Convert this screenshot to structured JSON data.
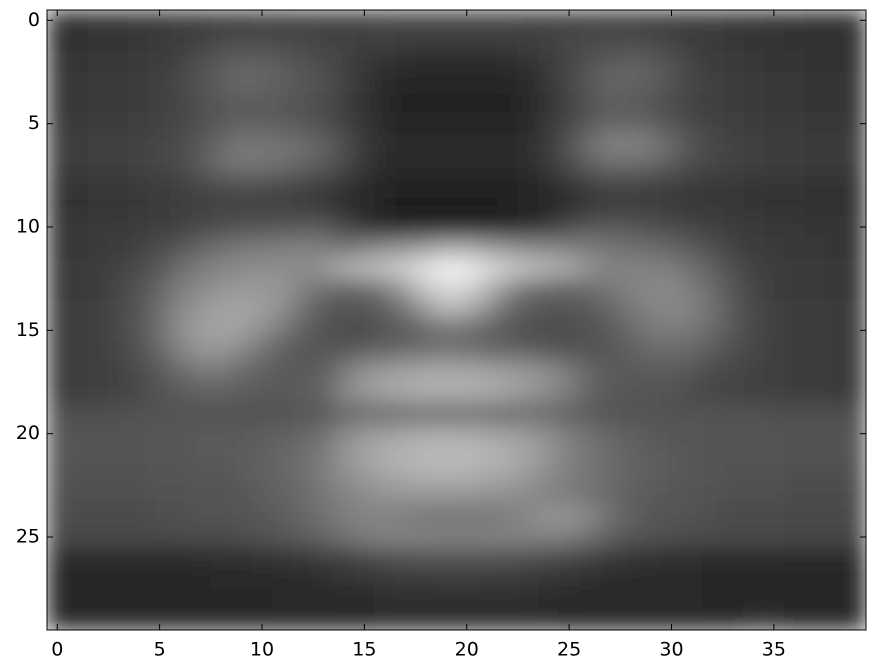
{
  "chart_data": {
    "type": "heatmap",
    "colormap": "gray",
    "xlim": [
      -0.5,
      39.5
    ],
    "ylim": [
      29.5,
      -0.5
    ],
    "xticks": [
      0,
      5,
      10,
      15,
      20,
      25,
      30,
      35
    ],
    "yticks": [
      0,
      5,
      10,
      15,
      20,
      25
    ],
    "z": [
      [
        24,
        24,
        25,
        25,
        26,
        26,
        27,
        27,
        28,
        28,
        29,
        29,
        30,
        30,
        30,
        30,
        31,
        31,
        31,
        31,
        31,
        31,
        31,
        30,
        30,
        30,
        30,
        29,
        29,
        28,
        28,
        27,
        27,
        26,
        26,
        25,
        25,
        24,
        24,
        24
      ],
      [
        24,
        24,
        25,
        25,
        26,
        27,
        28,
        30,
        32,
        33,
        33,
        32,
        31,
        30,
        30,
        29,
        29,
        28,
        28,
        28,
        28,
        28,
        28,
        29,
        30,
        31,
        32,
        33,
        33,
        32,
        30,
        28,
        27,
        26,
        25,
        25,
        24,
        24,
        24,
        24
      ],
      [
        25,
        25,
        26,
        26,
        27,
        28,
        30,
        34,
        38,
        40,
        40,
        38,
        35,
        33,
        30,
        26,
        24,
        23,
        22,
        22,
        22,
        22,
        23,
        24,
        27,
        31,
        35,
        38,
        40,
        38,
        35,
        30,
        28,
        27,
        26,
        25,
        25,
        24,
        24,
        24
      ],
      [
        26,
        26,
        27,
        27,
        28,
        29,
        32,
        36,
        40,
        43,
        42,
        40,
        37,
        35,
        30,
        25,
        22,
        20,
        20,
        20,
        20,
        20,
        20,
        22,
        26,
        32,
        38,
        42,
        42,
        40,
        36,
        31,
        29,
        28,
        27,
        26,
        26,
        25,
        25,
        25
      ],
      [
        26,
        26,
        27,
        27,
        28,
        29,
        31,
        34,
        37,
        38,
        38,
        37,
        35,
        33,
        29,
        24,
        21,
        19,
        19,
        19,
        19,
        19,
        19,
        21,
        25,
        30,
        35,
        38,
        38,
        36,
        33,
        30,
        29,
        28,
        27,
        26,
        26,
        25,
        25,
        25
      ],
      [
        27,
        27,
        28,
        28,
        29,
        30,
        31,
        34,
        38,
        40,
        40,
        39,
        37,
        34,
        30,
        25,
        22,
        20,
        20,
        20,
        20,
        20,
        20,
        22,
        26,
        32,
        38,
        42,
        42,
        40,
        36,
        32,
        30,
        29,
        28,
        27,
        27,
        26,
        26,
        26
      ],
      [
        28,
        28,
        29,
        29,
        30,
        31,
        33,
        38,
        44,
        48,
        48,
        47,
        45,
        41,
        34,
        27,
        23,
        21,
        21,
        21,
        21,
        21,
        21,
        23,
        28,
        36,
        46,
        52,
        53,
        50,
        44,
        36,
        32,
        30,
        29,
        28,
        28,
        27,
        27,
        27
      ],
      [
        28,
        28,
        29,
        29,
        30,
        31,
        33,
        38,
        45,
        48,
        47,
        45,
        42,
        38,
        32,
        26,
        22,
        21,
        21,
        21,
        21,
        21,
        21,
        23,
        27,
        33,
        40,
        44,
        44,
        42,
        38,
        33,
        31,
        30,
        29,
        28,
        28,
        27,
        27,
        27
      ],
      [
        25,
        25,
        26,
        26,
        27,
        28,
        29,
        31,
        33,
        34,
        33,
        32,
        30,
        28,
        25,
        22,
        20,
        19,
        19,
        19,
        19,
        19,
        19,
        20,
        22,
        25,
        28,
        30,
        30,
        29,
        28,
        27,
        26,
        26,
        25,
        25,
        25,
        24,
        24,
        24
      ],
      [
        24,
        24,
        25,
        25,
        26,
        27,
        28,
        29,
        30,
        30,
        30,
        29,
        28,
        26,
        23,
        20,
        18,
        17,
        17,
        17,
        17,
        17,
        17,
        18,
        20,
        23,
        26,
        28,
        28,
        28,
        27,
        26,
        26,
        25,
        25,
        24,
        24,
        24,
        24,
        24
      ],
      [
        26,
        26,
        27,
        27,
        28,
        29,
        30,
        32,
        34,
        35,
        36,
        37,
        38,
        38,
        32,
        25,
        21,
        20,
        20,
        20,
        20,
        20,
        21,
        23,
        27,
        33,
        37,
        38,
        37,
        35,
        33,
        31,
        29,
        28,
        27,
        26,
        26,
        25,
        25,
        25
      ],
      [
        26,
        26,
        27,
        28,
        30,
        33,
        37,
        42,
        46,
        48,
        50,
        51,
        52,
        50,
        48,
        52,
        56,
        58,
        62,
        66,
        66,
        62,
        58,
        55,
        54,
        52,
        50,
        48,
        46,
        44,
        42,
        38,
        34,
        30,
        28,
        27,
        26,
        26,
        25,
        25
      ],
      [
        27,
        27,
        28,
        30,
        33,
        38,
        45,
        50,
        53,
        55,
        56,
        56,
        55,
        60,
        68,
        72,
        75,
        80,
        86,
        92,
        90,
        84,
        78,
        74,
        70,
        66,
        58,
        52,
        52,
        52,
        50,
        46,
        40,
        34,
        30,
        28,
        27,
        27,
        26,
        26
      ],
      [
        27,
        27,
        28,
        31,
        35,
        42,
        50,
        55,
        58,
        60,
        60,
        58,
        52,
        45,
        42,
        44,
        50,
        62,
        75,
        82,
        80,
        70,
        56,
        46,
        42,
        42,
        44,
        48,
        52,
        54,
        54,
        50,
        44,
        36,
        31,
        28,
        27,
        27,
        26,
        26
      ],
      [
        28,
        28,
        29,
        32,
        37,
        45,
        54,
        60,
        63,
        64,
        62,
        56,
        46,
        38,
        35,
        36,
        40,
        48,
        60,
        70,
        66,
        56,
        44,
        38,
        36,
        36,
        38,
        42,
        48,
        52,
        54,
        52,
        46,
        38,
        32,
        29,
        28,
        28,
        27,
        27
      ],
      [
        28,
        28,
        29,
        32,
        37,
        46,
        56,
        62,
        64,
        62,
        56,
        48,
        40,
        35,
        33,
        33,
        35,
        38,
        42,
        45,
        44,
        40,
        36,
        34,
        33,
        33,
        35,
        38,
        44,
        48,
        50,
        48,
        44,
        37,
        32,
        29,
        28,
        28,
        27,
        27
      ],
      [
        28,
        28,
        29,
        31,
        35,
        42,
        52,
        58,
        58,
        54,
        46,
        40,
        37,
        36,
        38,
        40,
        42,
        44,
        46,
        47,
        46,
        44,
        42,
        40,
        38,
        37,
        36,
        37,
        40,
        43,
        44,
        42,
        38,
        34,
        31,
        29,
        28,
        28,
        27,
        27
      ],
      [
        28,
        28,
        29,
        30,
        33,
        38,
        44,
        48,
        48,
        44,
        40,
        38,
        38,
        40,
        50,
        58,
        62,
        64,
        66,
        66,
        66,
        64,
        62,
        60,
        56,
        50,
        42,
        38,
        38,
        38,
        38,
        36,
        33,
        31,
        30,
        29,
        28,
        28,
        27,
        27
      ],
      [
        28,
        28,
        29,
        30,
        32,
        35,
        38,
        40,
        40,
        39,
        38,
        38,
        39,
        42,
        54,
        60,
        64,
        66,
        68,
        68,
        68,
        66,
        64,
        60,
        56,
        50,
        42,
        38,
        37,
        36,
        35,
        33,
        31,
        30,
        29,
        29,
        28,
        28,
        27,
        27
      ],
      [
        34,
        34,
        34,
        34,
        35,
        35,
        35,
        35,
        35,
        35,
        35,
        35,
        36,
        38,
        42,
        44,
        44,
        45,
        45,
        45,
        45,
        45,
        44,
        44,
        42,
        40,
        38,
        36,
        35,
        35,
        35,
        35,
        35,
        35,
        35,
        34,
        34,
        34,
        34,
        34
      ],
      [
        36,
        36,
        36,
        36,
        36,
        37,
        37,
        38,
        38,
        38,
        39,
        40,
        42,
        46,
        54,
        60,
        62,
        64,
        66,
        66,
        66,
        64,
        62,
        60,
        56,
        50,
        46,
        42,
        40,
        38,
        37,
        37,
        36,
        36,
        36,
        36,
        35,
        35,
        35,
        35
      ],
      [
        36,
        36,
        36,
        36,
        36,
        37,
        37,
        38,
        38,
        39,
        40,
        42,
        45,
        50,
        58,
        64,
        68,
        70,
        72,
        72,
        72,
        70,
        68,
        64,
        58,
        52,
        48,
        44,
        41,
        39,
        38,
        37,
        36,
        36,
        36,
        36,
        35,
        35,
        35,
        35
      ],
      [
        35,
        35,
        35,
        35,
        35,
        36,
        36,
        37,
        37,
        38,
        40,
        42,
        45,
        50,
        56,
        60,
        64,
        66,
        68,
        68,
        68,
        66,
        64,
        60,
        55,
        50,
        47,
        44,
        41,
        39,
        38,
        37,
        36,
        35,
        35,
        35,
        34,
        34,
        34,
        34
      ],
      [
        34,
        34,
        34,
        34,
        34,
        35,
        35,
        36,
        36,
        37,
        39,
        41,
        44,
        48,
        52,
        55,
        57,
        58,
        58,
        58,
        58,
        57,
        56,
        54,
        52,
        50,
        47,
        43,
        40,
        38,
        37,
        36,
        35,
        34,
        34,
        34,
        33,
        33,
        33,
        33
      ],
      [
        33,
        33,
        33,
        33,
        33,
        34,
        34,
        35,
        35,
        36,
        37,
        39,
        42,
        46,
        50,
        52,
        52,
        50,
        48,
        47,
        47,
        48,
        50,
        54,
        58,
        58,
        54,
        46,
        40,
        37,
        36,
        35,
        34,
        33,
        33,
        33,
        32,
        32,
        32,
        32
      ],
      [
        32,
        32,
        32,
        32,
        32,
        32,
        33,
        33,
        33,
        34,
        35,
        37,
        39,
        42,
        46,
        50,
        52,
        52,
        52,
        52,
        52,
        52,
        52,
        52,
        52,
        50,
        46,
        40,
        37,
        35,
        34,
        33,
        33,
        32,
        32,
        32,
        31,
        31,
        31,
        31
      ],
      [
        22,
        22,
        22,
        22,
        22,
        22,
        22,
        23,
        23,
        23,
        24,
        25,
        26,
        28,
        30,
        32,
        34,
        35,
        36,
        36,
        36,
        36,
        35,
        34,
        33,
        31,
        29,
        27,
        25,
        24,
        23,
        23,
        22,
        22,
        22,
        22,
        22,
        22,
        22,
        22
      ],
      [
        20,
        20,
        20,
        20,
        20,
        20,
        20,
        20,
        21,
        21,
        21,
        22,
        22,
        23,
        24,
        25,
        26,
        27,
        27,
        28,
        28,
        27,
        27,
        26,
        25,
        24,
        23,
        22,
        22,
        21,
        21,
        21,
        20,
        20,
        20,
        20,
        20,
        20,
        20,
        20
      ],
      [
        20,
        20,
        20,
        20,
        20,
        20,
        20,
        20,
        20,
        20,
        20,
        21,
        21,
        21,
        22,
        22,
        23,
        23,
        23,
        23,
        23,
        23,
        23,
        23,
        22,
        22,
        22,
        21,
        21,
        21,
        21,
        21,
        20,
        20,
        20,
        20,
        20,
        20,
        20,
        20
      ],
      [
        20,
        20,
        20,
        20,
        20,
        20,
        20,
        20,
        20,
        20,
        20,
        20,
        20,
        20,
        20,
        20,
        21,
        21,
        21,
        21,
        21,
        21,
        21,
        21,
        21,
        20,
        20,
        20,
        20,
        20,
        20,
        20,
        20,
        20,
        24,
        24,
        20,
        20,
        20,
        20
      ]
    ]
  }
}
